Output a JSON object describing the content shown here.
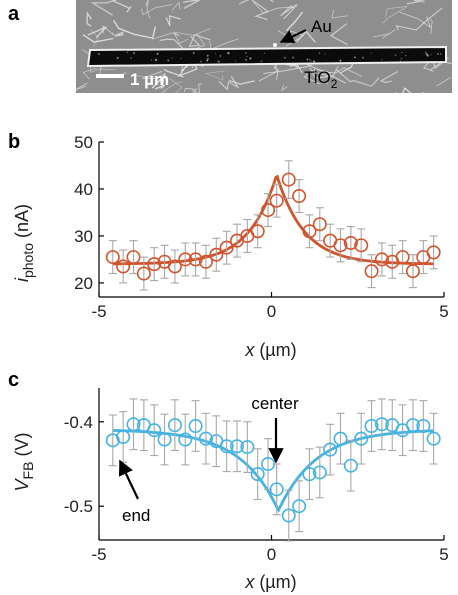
{
  "panels": {
    "a": {
      "label": "a"
    },
    "b": {
      "label": "b"
    },
    "c": {
      "label": "c"
    }
  },
  "sem_image": {
    "scale_bar_text": "1 µm",
    "au_label": "Au",
    "tio2_label": "TiO",
    "tio2_subscript": "2",
    "colors": {
      "background": "#8e8e8e",
      "grain": "#e6e6e6",
      "rod": "#0b0b0b",
      "rod_edge": "#f0f0f0"
    }
  },
  "chart_data": [
    {
      "panel": "b",
      "type": "scatter",
      "xlabel_var": "x",
      "xlabel_unit": " (µm)",
      "ylabel_var": "i",
      "ylabel_sub": "photo",
      "ylabel_unit": " (nA)",
      "xlim": [
        -5,
        5
      ],
      "ylim": [
        17,
        50
      ],
      "xticks": [
        -5,
        0,
        5
      ],
      "yticks": [
        20,
        30,
        40,
        50
      ],
      "grid": false,
      "color": "#d4532a",
      "error_color": "#a8a8a8",
      "series": [
        {
          "x": [
            -4.6,
            -4.3,
            -4.0,
            -3.7,
            -3.4,
            -3.1,
            -2.8,
            -2.5,
            -2.2,
            -1.9,
            -1.6,
            -1.3,
            -1.0,
            -0.7,
            -0.4,
            -0.1,
            0.15,
            0.5,
            0.8,
            1.1,
            1.4,
            1.7,
            2.0,
            2.3,
            2.6,
            2.9,
            3.2,
            3.5,
            3.8,
            4.1,
            4.4,
            4.7
          ],
          "y": [
            25.5,
            23.5,
            25.5,
            22.0,
            24.0,
            24.5,
            23.5,
            25.0,
            25.0,
            24.5,
            26.0,
            27.5,
            29.0,
            30.0,
            31.0,
            35.5,
            37.5,
            42.0,
            38.5,
            31.0,
            32.5,
            29.0,
            28.0,
            28.5,
            28.0,
            22.5,
            25.0,
            24.5,
            25.5,
            22.5,
            25.5,
            26.5
          ],
          "err": [
            3.5,
            3.5,
            3.5,
            3.5,
            3.5,
            3.5,
            3.5,
            3.5,
            3.5,
            3.5,
            3.5,
            3.5,
            3.5,
            3.5,
            3.5,
            3.5,
            3.5,
            4.0,
            3.5,
            3.5,
            3.5,
            3.5,
            3.5,
            3.5,
            3.5,
            3.5,
            3.5,
            3.5,
            3.5,
            3.5,
            3.5,
            3.5
          ]
        }
      ],
      "fit": {
        "baseline": 24.0,
        "peak": 43.0,
        "center": 0.15,
        "decay_length": 0.8
      }
    },
    {
      "panel": "c",
      "type": "scatter",
      "xlabel_var": "x",
      "xlabel_unit": " (µm)",
      "ylabel_var": "V",
      "ylabel_sub": "FB",
      "ylabel_unit": " (V)",
      "xlim": [
        -5,
        5
      ],
      "ylim": [
        -0.54,
        -0.36
      ],
      "xticks": [
        -5,
        0,
        5
      ],
      "yticks": [
        -0.4,
        -0.5
      ],
      "ytick_labels": [
        "-0.4",
        "-0.5"
      ],
      "grid": false,
      "color": "#42b4e6",
      "error_color": "#a8a8a8",
      "series": [
        {
          "x": [
            -4.6,
            -4.3,
            -4.0,
            -3.7,
            -3.4,
            -3.1,
            -2.8,
            -2.5,
            -2.2,
            -1.9,
            -1.6,
            -1.3,
            -1.0,
            -0.7,
            -0.4,
            -0.1,
            0.15,
            0.5,
            0.8,
            1.1,
            1.4,
            1.7,
            2.0,
            2.3,
            2.6,
            2.9,
            3.2,
            3.5,
            3.8,
            4.1,
            4.4,
            4.7
          ],
          "y": [
            -0.422,
            -0.418,
            -0.403,
            -0.404,
            -0.41,
            -0.421,
            -0.404,
            -0.421,
            -0.405,
            -0.42,
            -0.423,
            -0.429,
            -0.429,
            -0.43,
            -0.462,
            -0.45,
            -0.48,
            -0.511,
            -0.5,
            -0.462,
            -0.46,
            -0.433,
            -0.42,
            -0.452,
            -0.42,
            -0.405,
            -0.403,
            -0.404,
            -0.41,
            -0.404,
            -0.405,
            -0.42
          ],
          "err": [
            0.03,
            0.03,
            0.03,
            0.03,
            0.03,
            0.03,
            0.03,
            0.03,
            0.03,
            0.03,
            0.03,
            0.03,
            0.03,
            0.03,
            0.03,
            0.03,
            0.03,
            0.03,
            0.03,
            0.03,
            0.03,
            0.03,
            0.03,
            0.03,
            0.03,
            0.03,
            0.03,
            0.03,
            0.03,
            0.03,
            0.03,
            0.03
          ]
        }
      ],
      "fit": {
        "baseline": -0.409,
        "peak": -0.505,
        "center": 0.2,
        "decay_length": 1.1
      },
      "annotations": [
        {
          "text": "center",
          "points_to": [
            0.2,
            -0.46
          ]
        },
        {
          "text": "end",
          "points_to": [
            -4.5,
            -0.44
          ]
        }
      ]
    }
  ]
}
